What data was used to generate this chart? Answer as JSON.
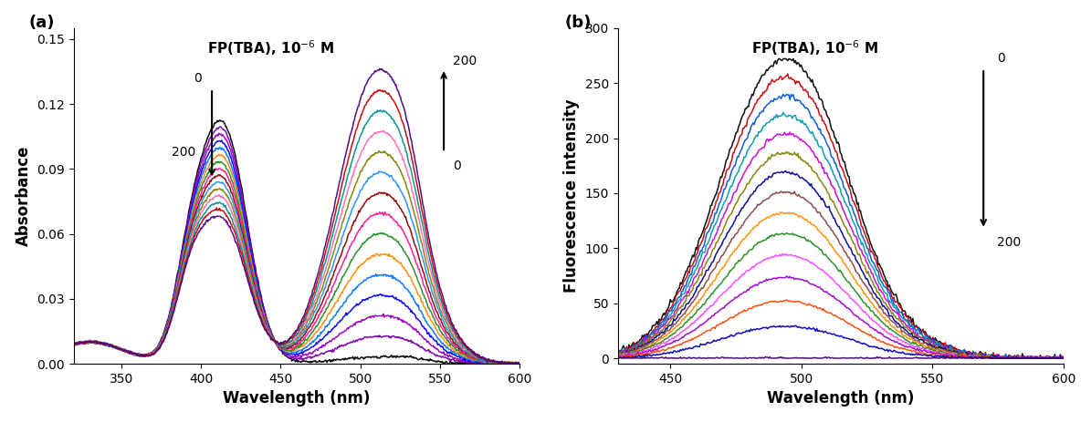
{
  "panel_a": {
    "xlabel": "Wavelength (nm)",
    "ylabel": "Absorbance",
    "xlim": [
      320,
      600
    ],
    "ylim": [
      0.0,
      0.155
    ],
    "yticks": [
      0.0,
      0.03,
      0.06,
      0.09,
      0.12,
      0.15
    ],
    "xticks": [
      350,
      400,
      450,
      500,
      550,
      600
    ],
    "label": "FP(TBA), 10⁻⁶ M",
    "n_curves": 15,
    "colors_a": [
      "#000000",
      "#7700aa",
      "#9900bb",
      "#0000ff",
      "#0077ff",
      "#ff8800",
      "#228b22",
      "#ff1493",
      "#8b0000",
      "#1e90ff",
      "#808000",
      "#ff69b4",
      "#009090",
      "#cc0000",
      "#4b0082"
    ]
  },
  "panel_b": {
    "xlabel": "Wavelength (nm)",
    "ylabel": "Fluorescence intensity",
    "xlim": [
      430,
      600
    ],
    "ylim": [
      -5,
      300
    ],
    "yticks": [
      0,
      50,
      100,
      150,
      200,
      250,
      300
    ],
    "xticks": [
      450,
      500,
      550,
      600
    ],
    "label": "FP(TBA), 10⁻⁶ M",
    "n_curves": 15,
    "colors_b": [
      "#000000",
      "#cc0000",
      "#0055dd",
      "#0099aa",
      "#cc00cc",
      "#808000",
      "#000099",
      "#884444",
      "#ff8c00",
      "#228b22",
      "#ff44ff",
      "#9900cc",
      "#ff4500",
      "#0000bb",
      "#440066"
    ]
  }
}
